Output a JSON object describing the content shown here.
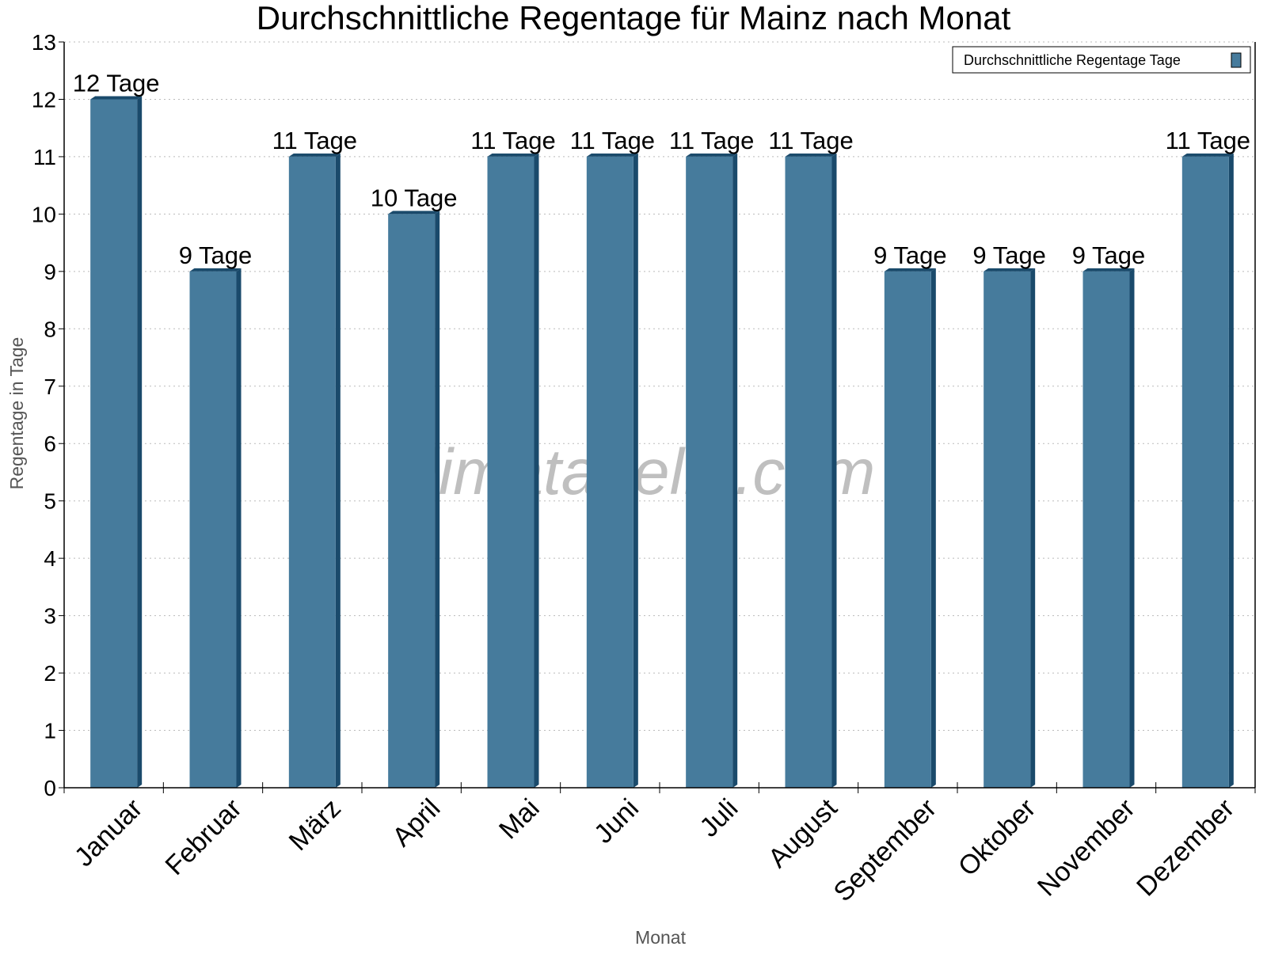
{
  "chart_data": {
    "type": "bar",
    "title": "Durchschnittliche Regentage für Mainz nach Monat",
    "xlabel": "Monat",
    "ylabel": "Regentage in Tage",
    "categories": [
      "Januar",
      "Februar",
      "März",
      "April",
      "Mai",
      "Juni",
      "Juli",
      "August",
      "September",
      "Oktober",
      "November",
      "Dezember"
    ],
    "series": [
      {
        "name": "Durchschnittliche Regentage Tage",
        "values": [
          12,
          9,
          11,
          10,
          11,
          11,
          11,
          11,
          9,
          9,
          9,
          11
        ],
        "color": "#467b9c",
        "side_color": "#1a4a6b"
      }
    ],
    "data_labels": [
      "12 Tage",
      "9 Tage",
      "11 Tage",
      "10 Tage",
      "11 Tage",
      "11 Tage",
      "11 Tage",
      "11 Tage",
      "9 Tage",
      "9 Tage",
      "9 Tage",
      "11 Tage"
    ],
    "ylim": [
      0,
      13
    ],
    "yticks": [
      "0",
      "1",
      "2",
      "3",
      "4",
      "5",
      "6",
      "7",
      "8",
      "9",
      "10",
      "11",
      "12",
      "13"
    ],
    "grid": true,
    "legend_position": "top-right",
    "watermark": "klimatabelle.com"
  }
}
